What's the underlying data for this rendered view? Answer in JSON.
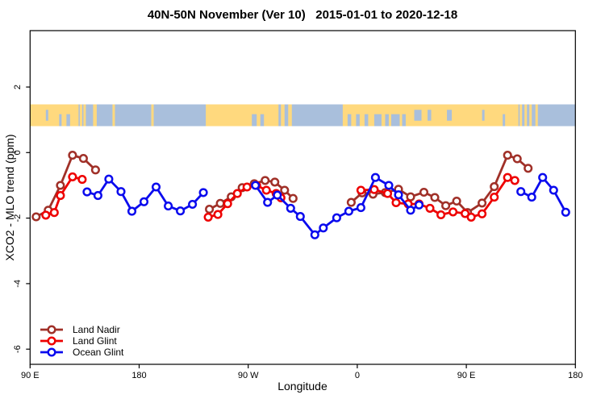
{
  "title": "40N-50N November (Ver 10)   2015-01-01 to 2020-12-18",
  "x_axis": {
    "label": "Longitude",
    "ticks": [
      {
        "pos_deg": 0,
        "label": "90 E"
      },
      {
        "pos_deg": 90,
        "label": "180"
      },
      {
        "pos_deg": 180,
        "label": "90 W"
      },
      {
        "pos_deg": 270,
        "label": "0"
      },
      {
        "pos_deg": 360,
        "label": "90 E"
      },
      {
        "pos_deg": 450,
        "label": "180"
      }
    ]
  },
  "y_axis": {
    "label": "XCO2 - MLO trend (ppm)",
    "ticks": [
      {
        "value": 2,
        "label": "2"
      },
      {
        "value": 0,
        "label": "0"
      },
      {
        "value": -2,
        "label": "-2"
      },
      {
        "value": -4,
        "label": "-4"
      },
      {
        "value": -6,
        "label": "-6"
      }
    ]
  },
  "legend": [
    {
      "label": "Land Nadir",
      "color": "#A03028"
    },
    {
      "label": "Land Glint",
      "color": "#EE0000"
    },
    {
      "label": "Ocean Glint",
      "color": "#0B0BEE"
    }
  ],
  "map_band": {
    "description": "world coastline band at 40N-50N drawn across the plot near y = +1 ppm",
    "land_color": "#FFD97E",
    "ocean_color": "#A9BFDC",
    "y_top_ppm": 1.45,
    "y_bottom_ppm": 0.8,
    "land_segments_deg": [
      [
        0,
        40
      ],
      [
        41,
        43
      ],
      [
        44,
        46
      ],
      [
        52,
        55
      ],
      [
        68,
        70
      ],
      [
        100,
        102
      ],
      [
        145,
        205
      ],
      [
        207,
        210
      ],
      [
        213,
        216
      ],
      [
        258,
        403
      ],
      [
        404,
        406
      ],
      [
        408,
        410
      ],
      [
        412,
        414
      ],
      [
        417,
        419
      ]
    ],
    "ocean_patches_deg": [
      [
        13,
        15,
        "mid"
      ],
      [
        24,
        26,
        "bottom"
      ],
      [
        30,
        33,
        "bottom"
      ],
      [
        183,
        187,
        "bottom"
      ],
      [
        190,
        193,
        "bottom"
      ],
      [
        262,
        265,
        "bottom"
      ],
      [
        269,
        272,
        "bottom"
      ],
      [
        276,
        279,
        "bottom"
      ],
      [
        284,
        290,
        "bottom"
      ],
      [
        293,
        296,
        "bottom"
      ],
      [
        298,
        305,
        "bottom"
      ],
      [
        307,
        310,
        "bottom"
      ],
      [
        317,
        323,
        "mid"
      ],
      [
        328,
        331,
        "mid"
      ],
      [
        344,
        348,
        "mid"
      ],
      [
        373,
        375,
        "mid"
      ],
      [
        390,
        392,
        "bottom"
      ]
    ]
  },
  "chart_data": {
    "type": "line",
    "title": "40N-50N November (Ver 10)   2015-01-01 to 2020-12-18",
    "xlabel": "Longitude",
    "ylabel": "XCO2 - MLO trend (ppm)",
    "x_axis_note": "x = degrees eastward along wrapped longitude axis starting at 90E (90E > 180 > 90W > 0 > 90E > 180)",
    "xlim": [
      0,
      450
    ],
    "ylim": [
      -6.5,
      3.7
    ],
    "grid": false,
    "legend_position": "bottom-left",
    "marker": "open-circle",
    "series": [
      {
        "name": "Land Nadir",
        "color": "#A03028",
        "segments": [
          [
            [
              5,
              -1.96
            ],
            [
              15,
              -1.76
            ],
            [
              25,
              -1.0
            ],
            [
              35,
              -0.08
            ],
            [
              44,
              -0.18
            ],
            [
              54,
              -0.53
            ]
          ],
          [
            [
              148,
              -1.73
            ],
            [
              157,
              -1.55
            ],
            [
              166,
              -1.35
            ],
            [
              175,
              -1.07
            ],
            [
              185,
              -0.95
            ],
            [
              194,
              -0.85
            ],
            [
              202,
              -0.9
            ],
            [
              210,
              -1.15
            ],
            [
              217,
              -1.4
            ]
          ],
          [
            [
              265,
              -1.52
            ],
            [
              274,
              -1.23
            ],
            [
              283,
              -1.27
            ],
            [
              293,
              -1.22
            ],
            [
              304,
              -1.12
            ],
            [
              314,
              -1.35
            ],
            [
              325,
              -1.21
            ],
            [
              334,
              -1.37
            ],
            [
              343,
              -1.62
            ],
            [
              352,
              -1.48
            ],
            [
              361,
              -1.83
            ],
            [
              373,
              -1.54
            ],
            [
              383,
              -1.04
            ],
            [
              394,
              -0.08
            ],
            [
              402,
              -0.19
            ],
            [
              411,
              -0.48
            ]
          ]
        ]
      },
      {
        "name": "Land Glint",
        "color": "#EE0000",
        "segments": [
          [
            [
              13,
              -1.91
            ],
            [
              20,
              -1.83
            ],
            [
              25,
              -1.31
            ],
            [
              35,
              -0.74
            ],
            [
              43,
              -0.82
            ]
          ],
          [
            [
              147,
              -1.97
            ],
            [
              155,
              -1.89
            ],
            [
              163,
              -1.56
            ],
            [
              171,
              -1.25
            ],
            [
              179,
              -1.05
            ],
            [
              187,
              -1.0
            ],
            [
              195,
              -1.15
            ],
            [
              203,
              -1.25
            ],
            [
              207,
              -1.38
            ]
          ],
          [
            [
              273,
              -1.15
            ],
            [
              284,
              -1.13
            ],
            [
              295,
              -1.25
            ],
            [
              302,
              -1.53
            ],
            [
              312,
              -1.57
            ],
            [
              321,
              -1.57
            ],
            [
              330,
              -1.7
            ],
            [
              339,
              -1.9
            ],
            [
              349,
              -1.81
            ],
            [
              359,
              -1.86
            ],
            [
              364,
              -1.97
            ],
            [
              373,
              -1.87
            ],
            [
              383,
              -1.36
            ],
            [
              394,
              -0.76
            ],
            [
              400,
              -0.85
            ]
          ]
        ]
      },
      {
        "name": "Ocean Glint",
        "color": "#0B0BEE",
        "segments": [
          [
            [
              47,
              -1.2
            ],
            [
              56,
              -1.31
            ],
            [
              65,
              -0.81
            ],
            [
              75,
              -1.19
            ],
            [
              84,
              -1.79
            ],
            [
              94,
              -1.5
            ],
            [
              104,
              -1.05
            ],
            [
              114,
              -1.63
            ],
            [
              124,
              -1.78
            ],
            [
              134,
              -1.58
            ],
            [
              143,
              -1.22
            ]
          ],
          [
            [
              186,
              -1.0
            ],
            [
              196,
              -1.52
            ],
            [
              204,
              -1.3
            ],
            [
              215,
              -1.7
            ],
            [
              223,
              -1.95
            ],
            [
              235,
              -2.51
            ],
            [
              242,
              -2.3
            ],
            [
              253,
              -1.99
            ],
            [
              263,
              -1.79
            ],
            [
              273,
              -1.68
            ],
            [
              285,
              -0.76
            ],
            [
              296,
              -1.0
            ],
            [
              304,
              -1.29
            ],
            [
              314,
              -1.76
            ],
            [
              321,
              -1.6
            ]
          ],
          [
            [
              405,
              -1.19
            ],
            [
              414,
              -1.36
            ],
            [
              423,
              -0.76
            ],
            [
              432,
              -1.15
            ],
            [
              442,
              -1.82
            ]
          ]
        ]
      }
    ]
  }
}
